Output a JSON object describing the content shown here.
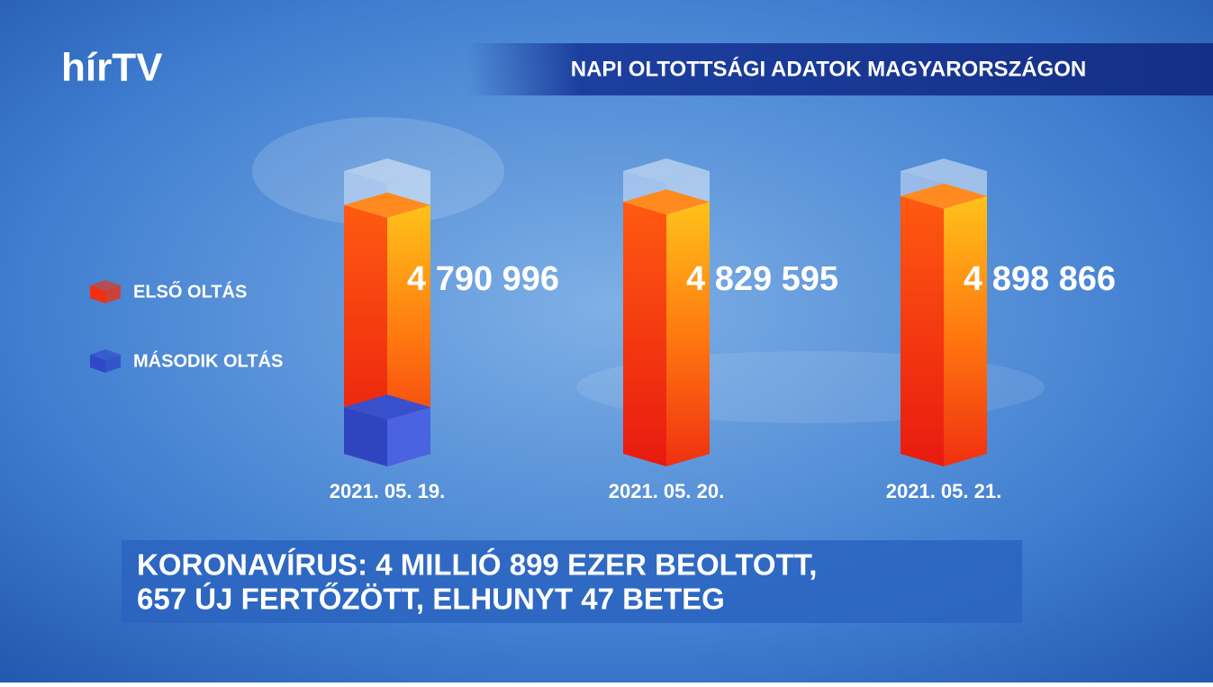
{
  "logo": "hírTV",
  "headline": [
    "KORONAVÍRUS: 4 MILLIÓ 899 EZER BEOLTOTT,",
    "657 ÚJ FERTŐZÖTT, ELHUNYT 47 BETEG"
  ],
  "chart_data": {
    "type": "bar",
    "title": "NAPI OLTOTTSÁGI ADATOK MAGYARORSZÁGON",
    "categories": [
      "2021. 05. 19.",
      "2021. 05. 20.",
      "2021. 05. 21."
    ],
    "ylim": [
      1800000,
      5200000
    ],
    "series": [
      {
        "name": "ELSŐ OLTÁS",
        "color": "#f03010",
        "values": [
          4790996,
          4829595,
          4898866
        ],
        "value_labels": [
          "4 790 996",
          "4 829 595",
          "4 898 866"
        ]
      },
      {
        "name": "MÁSODIK OLTÁS",
        "color": "#3048c8",
        "values": [
          2360000,
          null,
          null
        ]
      }
    ]
  }
}
